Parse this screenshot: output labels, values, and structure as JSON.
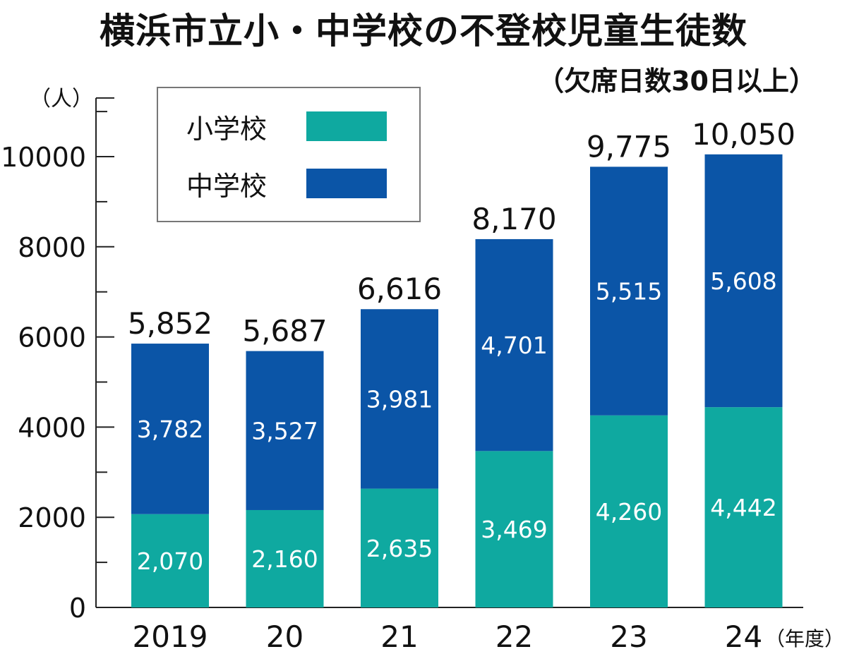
{
  "title": "横浜市立小・中学校の不登校児童生徒数",
  "subtitle": "（欠席日数30日以上）",
  "colors": {
    "elementary": "#0fa9a0",
    "junior_high": "#0b55a7"
  },
  "chart_data": {
    "type": "bar",
    "stacked": true,
    "title": "横浜市立小・中学校の不登校児童生徒数",
    "subtitle": "（欠席日数30日以上）",
    "ylabel": "（人）",
    "xlabel": "（年度）",
    "categories": [
      "2019",
      "20",
      "21",
      "22",
      "23",
      "24"
    ],
    "yticks": [
      0,
      2000,
      4000,
      6000,
      8000,
      10000
    ],
    "ylim": [
      0,
      11300
    ],
    "series": [
      {
        "name": "小学校",
        "values": [
          2070,
          2160,
          2635,
          3469,
          4260,
          4442
        ],
        "labels": [
          "2,070",
          "2,160",
          "2,635",
          "3,469",
          "4,260",
          "4,442"
        ]
      },
      {
        "name": "中学校",
        "values": [
          3782,
          3527,
          3981,
          4701,
          5515,
          5608
        ],
        "labels": [
          "3,782",
          "3,527",
          "3,981",
          "4,701",
          "5,515",
          "5,608"
        ]
      }
    ],
    "totals": [
      5852,
      5687,
      6616,
      8170,
      9775,
      10050
    ],
    "total_labels": [
      "5,852",
      "5,687",
      "6,616",
      "8,170",
      "9,775",
      "10,050"
    ],
    "legend": {
      "placement": "top-left",
      "items": [
        "小学校",
        "中学校"
      ]
    }
  }
}
